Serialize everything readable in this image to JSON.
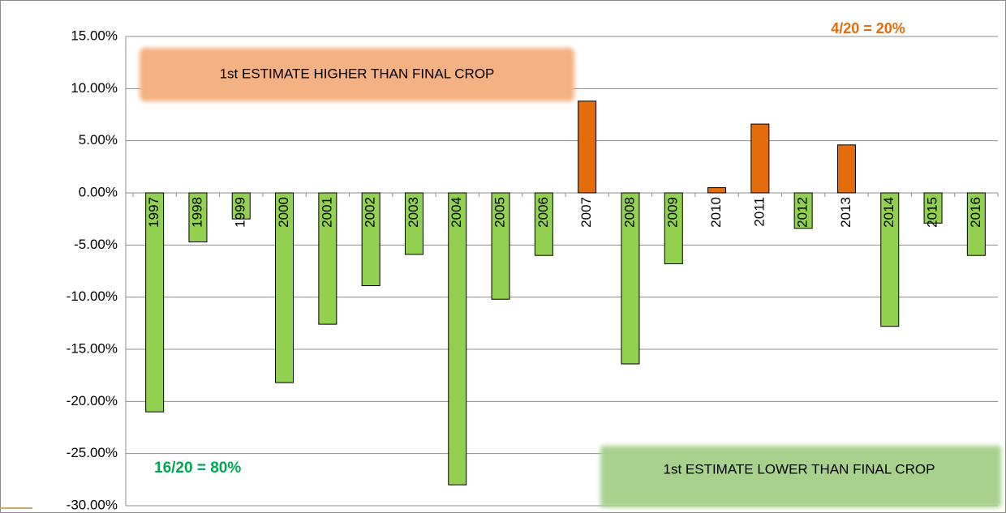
{
  "chart_data": {
    "type": "bar",
    "categories": [
      "1997",
      "1998",
      "1999",
      "2000",
      "2001",
      "2002",
      "2003",
      "2004",
      "2005",
      "2006",
      "2007",
      "2008",
      "2009",
      "2010",
      "2011",
      "2012",
      "2013",
      "2014",
      "2015",
      "2016"
    ],
    "values": [
      -21.0,
      -4.7,
      -2.5,
      -18.2,
      -12.6,
      -8.9,
      -5.9,
      -28.0,
      -10.2,
      -6.0,
      8.8,
      -16.4,
      -6.8,
      0.5,
      6.6,
      -3.4,
      4.6,
      -12.8,
      -2.9,
      -6.0
    ],
    "positive_color": "#e46c0a",
    "negative_color": "#92d050",
    "ylim": [
      -30,
      15
    ],
    "yticks": [
      {
        "value": -30,
        "label": "-30.00%"
      },
      {
        "value": -25,
        "label": "-25.00%"
      },
      {
        "value": -20,
        "label": "-20.00%"
      },
      {
        "value": -15,
        "label": "-15.00%"
      },
      {
        "value": -10,
        "label": "-10.00%"
      },
      {
        "value": -5,
        "label": "-5.00%"
      },
      {
        "value": 0,
        "label": "0.00%"
      },
      {
        "value": 5,
        "label": "5.00%"
      },
      {
        "value": 10,
        "label": "10.00%"
      },
      {
        "value": 15,
        "label": "15.00%"
      }
    ],
    "grid": true,
    "annotations": [
      "1st ESTIMATE HIGHER THAN FINAL CROP",
      "4/20 = 20%",
      "16/20 = 80%",
      "1st ESTIMATE LOWER THAN FINAL CROP"
    ]
  }
}
